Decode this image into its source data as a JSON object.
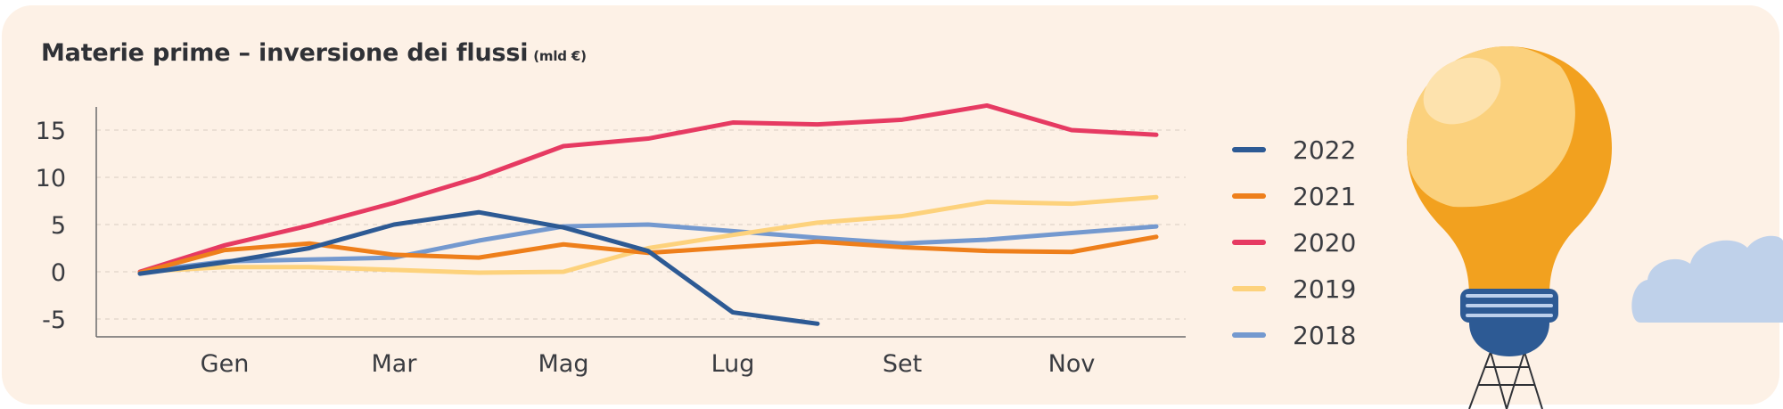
{
  "title": "Materie prime – inversione dei flussi",
  "unit": "(mld €)",
  "colors": {
    "background": "#fdf1e6",
    "axis": "#6b6b6b",
    "grid": "#d9cdc2",
    "text": "#3a3c41"
  },
  "illustration": {
    "icons": [
      "light-bulb-icon",
      "cloud-icon",
      "ladder-icon"
    ]
  },
  "chart_data": {
    "type": "line",
    "title": "Materie prime – inversione dei flussi",
    "ylabel": "(mld €)",
    "xlabel": "",
    "ylim": [
      -7,
      17
    ],
    "yticks": [
      15,
      10,
      5,
      0,
      -5
    ],
    "ytick_labels": [
      "15",
      "10",
      "5",
      "0",
      "-5"
    ],
    "x_ticks": [
      "Gen",
      "Mar",
      "Mag",
      "Lug",
      "Set",
      "Nov"
    ],
    "x_tick_positions": [
      1,
      3,
      5,
      7,
      9,
      11
    ],
    "x": [
      0,
      1,
      2,
      3,
      4,
      5,
      6,
      7,
      8,
      9,
      10,
      11,
      12
    ],
    "grid": true,
    "legend_position": "right",
    "series": [
      {
        "name": "2022",
        "color": "#2d5a94",
        "values": [
          -0.2,
          1,
          2.5,
          5,
          6.3,
          4.7,
          2.2,
          -4.3,
          -5.5,
          null,
          null,
          null,
          null
        ]
      },
      {
        "name": "2021",
        "color": "#ee7f1b",
        "values": [
          -0.1,
          2.3,
          3,
          1.8,
          1.5,
          2.9,
          2,
          2.6,
          3.2,
          2.6,
          2.2,
          2.1,
          3.7
        ]
      },
      {
        "name": "2020",
        "color": "#e63a62",
        "values": [
          0,
          2.8,
          4.9,
          7.3,
          10,
          13.3,
          14.1,
          15.8,
          15.6,
          16.1,
          17.6,
          15,
          14.5
        ]
      },
      {
        "name": "2019",
        "color": "#fdd27c",
        "values": [
          0,
          0.5,
          0.5,
          0.2,
          -0.1,
          0,
          2.5,
          3.9,
          5.2,
          5.9,
          7.4,
          7.2,
          7.9
        ]
      },
      {
        "name": "2018",
        "color": "#7499cf",
        "values": [
          0,
          1.1,
          1.3,
          1.5,
          3.3,
          4.8,
          5,
          4.3,
          3.6,
          3,
          3.4,
          4.1,
          4.8
        ]
      }
    ]
  }
}
